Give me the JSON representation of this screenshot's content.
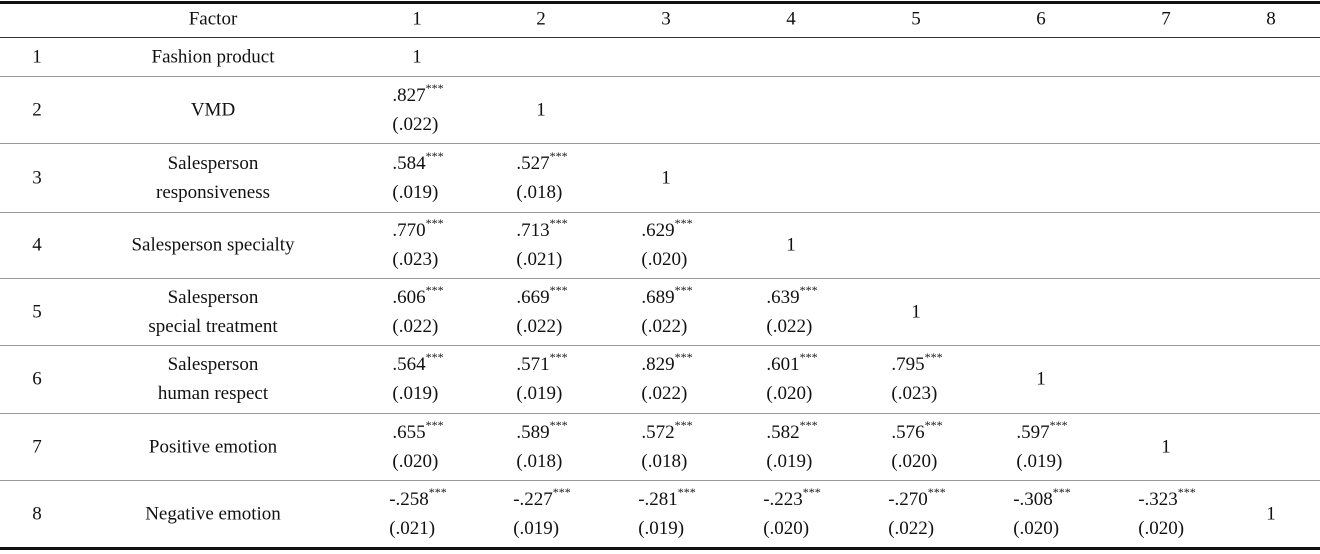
{
  "table": {
    "header": {
      "factor": "Factor",
      "columns": [
        "1",
        "2",
        "3",
        "4",
        "5",
        "6",
        "7",
        "8"
      ]
    },
    "rows": [
      {
        "number": "1",
        "factor": [
          "Fashion product"
        ],
        "cells": [
          {
            "value": "1"
          }
        ]
      },
      {
        "number": "2",
        "factor": [
          "VMD"
        ],
        "cells": [
          {
            "value": ".827",
            "sig": "***",
            "se": "(.022)"
          },
          {
            "value": "1"
          }
        ]
      },
      {
        "number": "3",
        "factor": [
          "Salesperson",
          "responsiveness"
        ],
        "cells": [
          {
            "value": ".584",
            "sig": "***",
            "se": "(.019)"
          },
          {
            "value": ".527",
            "sig": "***",
            "se": "(.018)"
          },
          {
            "value": "1"
          }
        ]
      },
      {
        "number": "4",
        "factor": [
          "Salesperson specialty"
        ],
        "cells": [
          {
            "value": ".770",
            "sig": "***",
            "se": "(.023)"
          },
          {
            "value": ".713",
            "sig": "***",
            "se": "(.021)"
          },
          {
            "value": ".629",
            "sig": "***",
            "se": "(.020)"
          },
          {
            "value": "1"
          }
        ]
      },
      {
        "number": "5",
        "factor": [
          "Salesperson",
          "special treatment"
        ],
        "cells": [
          {
            "value": ".606",
            "sig": "***",
            "se": "(.022)"
          },
          {
            "value": ".669",
            "sig": "***",
            "se": "(.022)"
          },
          {
            "value": ".689",
            "sig": "***",
            "se": "(.022)"
          },
          {
            "value": ".639",
            "sig": "***",
            "se": "(.022)"
          },
          {
            "value": "1"
          }
        ]
      },
      {
        "number": "6",
        "factor": [
          "Salesperson",
          "human respect"
        ],
        "cells": [
          {
            "value": ".564",
            "sig": "***",
            "se": "(.019)"
          },
          {
            "value": ".571",
            "sig": "***",
            "se": "(.019)"
          },
          {
            "value": ".829",
            "sig": "***",
            "se": "(.022)"
          },
          {
            "value": ".601",
            "sig": "***",
            "se": "(.020)"
          },
          {
            "value": ".795",
            "sig": "***",
            "se": "(.023)"
          },
          {
            "value": "1"
          }
        ]
      },
      {
        "number": "7",
        "factor": [
          "Positive emotion"
        ],
        "cells": [
          {
            "value": ".655",
            "sig": "***",
            "se": "(.020)"
          },
          {
            "value": ".589",
            "sig": "***",
            "se": "(.018)"
          },
          {
            "value": ".572",
            "sig": "***",
            "se": "(.018)"
          },
          {
            "value": ".582",
            "sig": "***",
            "se": "(.019)"
          },
          {
            "value": ".576",
            "sig": "***",
            "se": "(.020)"
          },
          {
            "value": ".597",
            "sig": "***",
            "se": "(.019)"
          },
          {
            "value": "1"
          }
        ]
      },
      {
        "number": "8",
        "factor": [
          "Negative emotion"
        ],
        "cells": [
          {
            "value": "-.258",
            "sig": "***",
            "se": "(.021)"
          },
          {
            "value": "-.227",
            "sig": "***",
            "se": "(.019)"
          },
          {
            "value": "-.281",
            "sig": "***",
            "se": "(.019)"
          },
          {
            "value": "-.223",
            "sig": "***",
            "se": "(.020)"
          },
          {
            "value": "-.270",
            "sig": "***",
            "se": "(.022)"
          },
          {
            "value": "-.308",
            "sig": "***",
            "se": "(.020)"
          },
          {
            "value": "-.323",
            "sig": "***",
            "se": "(.020)"
          },
          {
            "value": "1"
          }
        ]
      }
    ]
  }
}
